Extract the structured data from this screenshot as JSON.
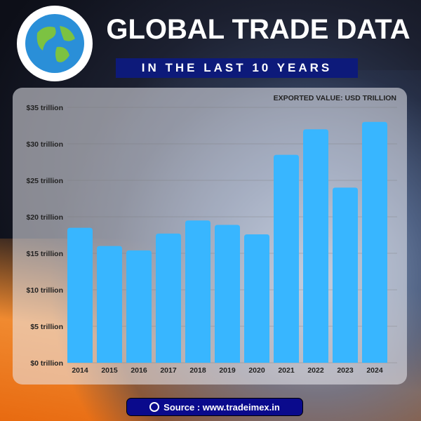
{
  "header": {
    "title": "GLOBAL TRADE DATA",
    "subtitle": "IN THE LAST 10 YEARS",
    "logo_icon": "globe-icon"
  },
  "footer": {
    "source_label": "Source : www.tradeimex.in",
    "icon": "globe-icon"
  },
  "colors": {
    "bar": "#38b6ff",
    "banner": "#0d1a7a",
    "source_pill": "#0a0a8c"
  },
  "chart_data": {
    "type": "bar",
    "title": "",
    "annotation": "EXPORTED VALUE: USD TRILLION",
    "categories": [
      "2014",
      "2015",
      "2016",
      "2017",
      "2018",
      "2019",
      "2020",
      "2021",
      "2022",
      "2023",
      "2024"
    ],
    "values": [
      18.5,
      16.0,
      15.4,
      17.7,
      19.5,
      18.9,
      17.6,
      28.5,
      32.0,
      24.0,
      33.0
    ],
    "ylim": [
      0,
      35
    ],
    "yticks": [
      0,
      5,
      10,
      15,
      20,
      25,
      30,
      35
    ],
    "ytick_labels": [
      "$0 trillion",
      "$5 trillion",
      "$10 trillion",
      "$15 trillion",
      "$20 trillion",
      "$25 trillion",
      "$30 trillion",
      "$35 trillion"
    ],
    "grid": true,
    "legend": "none"
  }
}
